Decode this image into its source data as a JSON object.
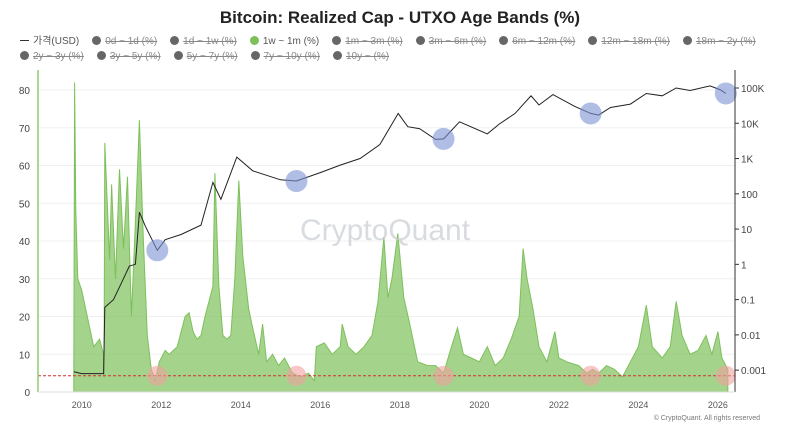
{
  "chart_data": {
    "type": "area",
    "title": "Bitcoin: Realized Cap - UTXO Age Bands (%)",
    "legend": [
      {
        "label": "가격(USD)",
        "color": "#222222",
        "visible": true,
        "style": "line"
      },
      {
        "label": "0d ~ 1d (%)",
        "visible": false
      },
      {
        "label": "1d ~ 1w (%)",
        "visible": false
      },
      {
        "label": "1w ~ 1m (%)",
        "color": "#7dc05a",
        "visible": true
      },
      {
        "label": "1m ~ 3m (%)",
        "visible": false
      },
      {
        "label": "3m ~ 6m (%)",
        "visible": false
      },
      {
        "label": "6m ~ 12m (%)",
        "visible": false
      },
      {
        "label": "12m ~ 18m (%)",
        "visible": false
      },
      {
        "label": "18m ~ 2y (%)",
        "visible": false
      },
      {
        "label": "2y ~ 3y (%)",
        "visible": false
      },
      {
        "label": "3y ~ 5y (%)",
        "visible": false
      },
      {
        "label": "5y ~ 7y (%)",
        "visible": false
      },
      {
        "label": "7y ~ 10y (%)",
        "visible": false
      },
      {
        "label": "10y ~ (%)",
        "visible": false
      }
    ],
    "legend_placement": "top",
    "x_ticks": [
      "2010",
      "2012",
      "2014",
      "2016",
      "2018",
      "2020",
      "2022",
      "2024",
      "2026"
    ],
    "xlim": [
      2008.9,
      2026.43
    ],
    "y_left": {
      "ticks": [
        0,
        10,
        20,
        30,
        40,
        50,
        60,
        70,
        80
      ],
      "ylim": [
        0,
        85.3
      ]
    },
    "y_right": {
      "scale": "log",
      "ticks": [
        "0.001",
        "0.01",
        "0.1",
        "1",
        "10",
        "100",
        "1K",
        "10K",
        "100K"
      ],
      "tick_values": [
        0.001,
        0.01,
        0.1,
        1,
        10,
        100,
        1000,
        10000,
        100000
      ],
      "ylim": [
        0.00024,
        324000
      ]
    },
    "grid": true,
    "series": [
      {
        "name": "1w ~ 1m (%)",
        "axis": "left",
        "type": "area",
        "color": "#7dc05a",
        "x": [
          2009.8,
          2009.82,
          2009.85,
          2009.9,
          2010.0,
          2010.1,
          2010.2,
          2010.3,
          2010.45,
          2010.55,
          2010.56,
          2010.58,
          2010.7,
          2010.75,
          2010.85,
          2010.95,
          2011.05,
          2011.15,
          2011.25,
          2011.35,
          2011.45,
          2011.55,
          2011.65,
          2011.75,
          2011.85,
          2011.95,
          2012.1,
          2012.2,
          2012.4,
          2012.6,
          2012.7,
          2012.8,
          2012.9,
          2013.0,
          2013.1,
          2013.2,
          2013.3,
          2013.35,
          2013.45,
          2013.55,
          2013.65,
          2013.75,
          2013.85,
          2013.95,
          2014.05,
          2014.2,
          2014.3,
          2014.45,
          2014.55,
          2014.65,
          2014.8,
          2014.95,
          2015.1,
          2015.3,
          2015.5,
          2015.7,
          2015.85,
          2015.9,
          2016.1,
          2016.3,
          2016.5,
          2016.55,
          2016.7,
          2016.9,
          2017.1,
          2017.3,
          2017.45,
          2017.6,
          2017.7,
          2017.8,
          2017.95,
          2018.1,
          2018.25,
          2018.45,
          2018.7,
          2018.9,
          2019.1,
          2019.3,
          2019.45,
          2019.6,
          2019.8,
          2020.0,
          2020.2,
          2020.4,
          2020.6,
          2020.8,
          2021.0,
          2021.1,
          2021.2,
          2021.35,
          2021.5,
          2021.7,
          2021.9,
          2022.0,
          2022.2,
          2022.5,
          2022.7,
          2022.85,
          2023.0,
          2023.2,
          2023.4,
          2023.6,
          2023.8,
          2024.0,
          2024.2,
          2024.35,
          2024.6,
          2024.8,
          2024.95,
          2025.1,
          2025.3,
          2025.5,
          2025.7,
          2025.85,
          2026.0,
          2026.1,
          2026.25
        ],
        "y": [
          5,
          82,
          48,
          30,
          27,
          22,
          17,
          12,
          14,
          10,
          4,
          66,
          35,
          55,
          30,
          59,
          38,
          57,
          20,
          45,
          72,
          40,
          15,
          6,
          3,
          8,
          11,
          10,
          12,
          20,
          21,
          16,
          14,
          15,
          20,
          24,
          28,
          58,
          28,
          15,
          14,
          15,
          30,
          56,
          36,
          22,
          17,
          10,
          18,
          8,
          10,
          7,
          9,
          5,
          4,
          5,
          3,
          12,
          13,
          10,
          12,
          18,
          12,
          10,
          12,
          15,
          24,
          41,
          25,
          30,
          42,
          25,
          18,
          8,
          7,
          7,
          5,
          12,
          17,
          10,
          9,
          8,
          12,
          7,
          9,
          14,
          20,
          38,
          30,
          22,
          12,
          8,
          16,
          9,
          8,
          7,
          5,
          6,
          5,
          7,
          6,
          4,
          8,
          12,
          23,
          12,
          9,
          12,
          24,
          15,
          10,
          11,
          15,
          10,
          16,
          9,
          6
        ]
      },
      {
        "name": "가격(USD)",
        "axis": "right",
        "type": "line",
        "color": "#222222",
        "x": [
          2009.8,
          2010.0,
          2010.55,
          2010.58,
          2010.8,
          2011.0,
          2011.2,
          2011.35,
          2011.45,
          2011.6,
          2011.9,
          2012.1,
          2012.5,
          2013.0,
          2013.3,
          2013.5,
          2013.9,
          2014.3,
          2015.0,
          2015.4,
          2016.0,
          2016.5,
          2017.0,
          2017.5,
          2017.96,
          2018.2,
          2018.5,
          2018.9,
          2019.1,
          2019.5,
          2020.2,
          2020.5,
          2020.9,
          2021.3,
          2021.5,
          2021.85,
          2022.4,
          2022.8,
          2023.0,
          2023.3,
          2023.8,
          2024.2,
          2024.6,
          2024.95,
          2025.3,
          2025.8,
          2026.05,
          2026.2
        ],
        "y": [
          0.0009,
          0.0008,
          0.0008,
          0.06,
          0.1,
          0.3,
          0.9,
          1,
          30,
          12,
          2.5,
          5,
          7,
          13,
          210,
          70,
          1100,
          450,
          250,
          230,
          400,
          650,
          1000,
          2500,
          19000,
          8000,
          7000,
          3500,
          3600,
          11000,
          5000,
          9500,
          19000,
          60000,
          33000,
          65000,
          30000,
          19000,
          17000,
          28000,
          35000,
          70000,
          60000,
          100000,
          85000,
          115000,
          90000,
          70000
        ]
      }
    ],
    "reference_line": {
      "axis": "left",
      "value": 4.3,
      "color": "#d32f2f",
      "style": "dashed"
    },
    "annotations": {
      "price_lows_circled": [
        2011.9,
        2015.4,
        2019.1,
        2022.8,
        2026.2
      ],
      "price_circle_color": "#7b93d6",
      "band_lows_circled": [
        2011.9,
        2015.4,
        2019.1,
        2022.8,
        2026.2
      ],
      "band_circle_color": "#f2a0a0"
    },
    "watermark": "CryptoQuant",
    "credit": "© CryptoQuant. All rights reserved"
  }
}
